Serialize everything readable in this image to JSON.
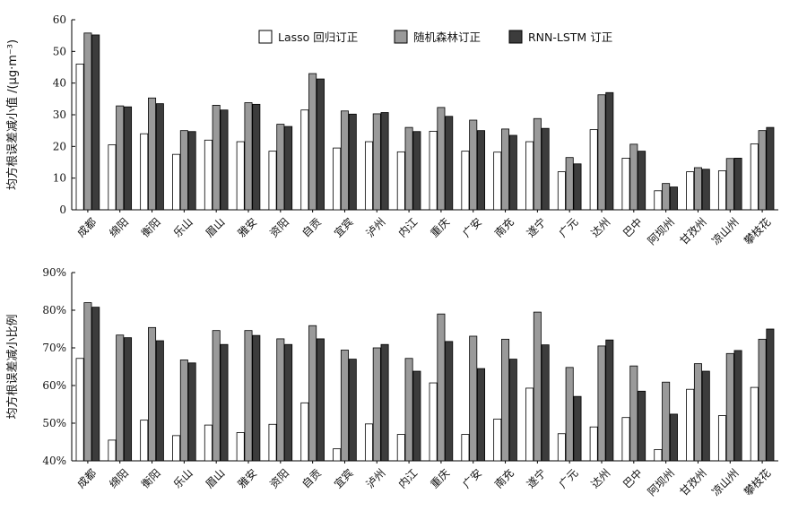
{
  "legend": {
    "items": [
      {
        "label": "Lasso 回归订正",
        "color": "#ffffff"
      },
      {
        "label": "随机森林订正",
        "color": "#9a9a9a"
      },
      {
        "label": "RNN-LSTM 订正",
        "color": "#3c3c3c"
      }
    ]
  },
  "chart_data": [
    {
      "type": "bar",
      "ylabel": "均方根误差减小值 /(μg·m⁻³)",
      "ylim": [
        0,
        60
      ],
      "yticks": [
        "0",
        "10",
        "20",
        "30",
        "40",
        "50",
        "60"
      ],
      "ytick_values": [
        0,
        10,
        20,
        30,
        40,
        50,
        60
      ],
      "categories": [
        "成都",
        "绵阳",
        "衡阳",
        "乐山",
        "眉山",
        "雅安",
        "资阳",
        "自贡",
        "宜宾",
        "泸州",
        "内江",
        "重庆",
        "广安",
        "南充",
        "遂宁",
        "广元",
        "达州",
        "巴中",
        "阿坝州",
        "甘孜州",
        "凉山州",
        "攀枝花"
      ],
      "series": [
        {
          "name": "Lasso 回归订正",
          "values": [
            46,
            20.5,
            24,
            17.5,
            22,
            21.5,
            18.5,
            31.5,
            19.5,
            21.5,
            18.3,
            24.8,
            18.5,
            18.2,
            21.5,
            12,
            25.3,
            16.3,
            6,
            12,
            12.3,
            20.8
          ]
        },
        {
          "name": "随机森林订正",
          "values": [
            55.8,
            32.8,
            35.3,
            25,
            33,
            33.8,
            27,
            43,
            31.2,
            30.3,
            26,
            32.3,
            28.3,
            25.5,
            28.8,
            16.5,
            36.3,
            20.7,
            8.3,
            13.3,
            16.2,
            25
          ]
        },
        {
          "name": "RNN-LSTM 订正",
          "values": [
            55.2,
            32.5,
            33.5,
            24.7,
            31.5,
            33.3,
            26.3,
            41.3,
            30.2,
            30.7,
            24.7,
            29.5,
            25,
            23.5,
            25.7,
            14.5,
            37,
            18.5,
            7.2,
            12.8,
            16.3,
            26
          ]
        }
      ]
    },
    {
      "type": "bar",
      "ylabel": "均方根误差减小比例",
      "ylim": [
        40,
        90
      ],
      "yticks": [
        "40%",
        "50%",
        "60%",
        "70%",
        "80%",
        "90%"
      ],
      "ytick_values": [
        40,
        50,
        60,
        70,
        80,
        90
      ],
      "categories": [
        "成都",
        "绵阳",
        "衡阳",
        "乐山",
        "眉山",
        "雅安",
        "资阳",
        "自贡",
        "宜宾",
        "泸州",
        "内江",
        "重庆",
        "广安",
        "南充",
        "遂宁",
        "广元",
        "达州",
        "巴中",
        "阿坝州",
        "甘孜州",
        "凉山州",
        "攀枝花"
      ],
      "series": [
        {
          "name": "Lasso 回归订正",
          "values": [
            67.2,
            45.5,
            50.8,
            46.7,
            49.5,
            47.5,
            49.7,
            55.4,
            43.2,
            49.8,
            47,
            60.7,
            47,
            51.1,
            59.3,
            47.2,
            49,
            51.5,
            43,
            59,
            52,
            59.5
          ]
        },
        {
          "name": "随机森林订正",
          "values": [
            82,
            73.4,
            75.4,
            66.8,
            74.6,
            74.6,
            72.4,
            75.9,
            69.4,
            70,
            67.2,
            79,
            73.1,
            72.3,
            79.5,
            64.8,
            70.5,
            65.2,
            60.9,
            65.8,
            68.5,
            72.3
          ]
        },
        {
          "name": "RNN-LSTM 订正",
          "values": [
            80.8,
            72.7,
            71.9,
            66,
            70.9,
            73.3,
            70.9,
            72.4,
            67,
            70.9,
            63.8,
            71.7,
            64.5,
            67,
            70.8,
            57.1,
            72.1,
            58.5,
            52.4,
            63.8,
            69.3,
            75
          ]
        }
      ]
    }
  ]
}
